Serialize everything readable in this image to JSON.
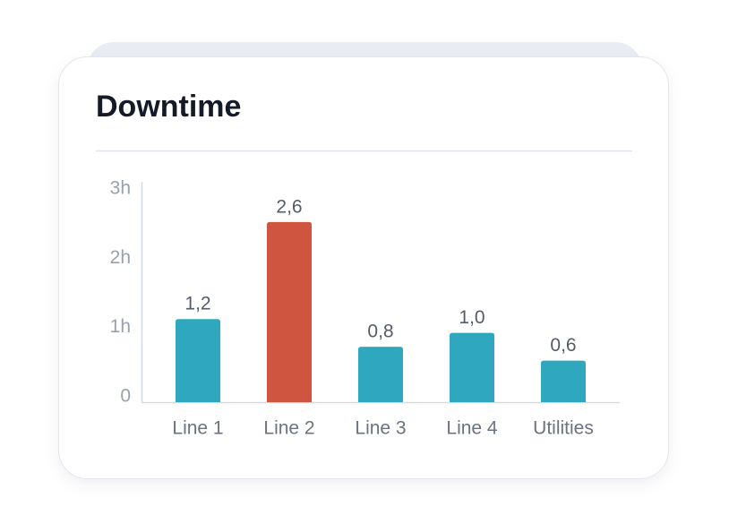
{
  "chart_data": {
    "type": "bar",
    "title": "Downtime",
    "categories": [
      "Line 1",
      "Line 2",
      "Line 3",
      "Line 4",
      "Utilities"
    ],
    "values": [
      1.2,
      2.6,
      0.8,
      1.0,
      0.6
    ],
    "value_labels": [
      "1,2",
      "2,6",
      "0,8",
      "1,0",
      "0,6"
    ],
    "colors": [
      "#2fa8bf",
      "#cf5541",
      "#2fa8bf",
      "#2fa8bf",
      "#2fa8bf"
    ],
    "ylim": [
      0,
      3
    ],
    "yticks": [
      0,
      {
        "value": 1,
        "label": "1h"
      },
      {
        "value": 2,
        "label": "2h"
      },
      {
        "value": 3,
        "label": "3h"
      }
    ],
    "grid": false
  }
}
